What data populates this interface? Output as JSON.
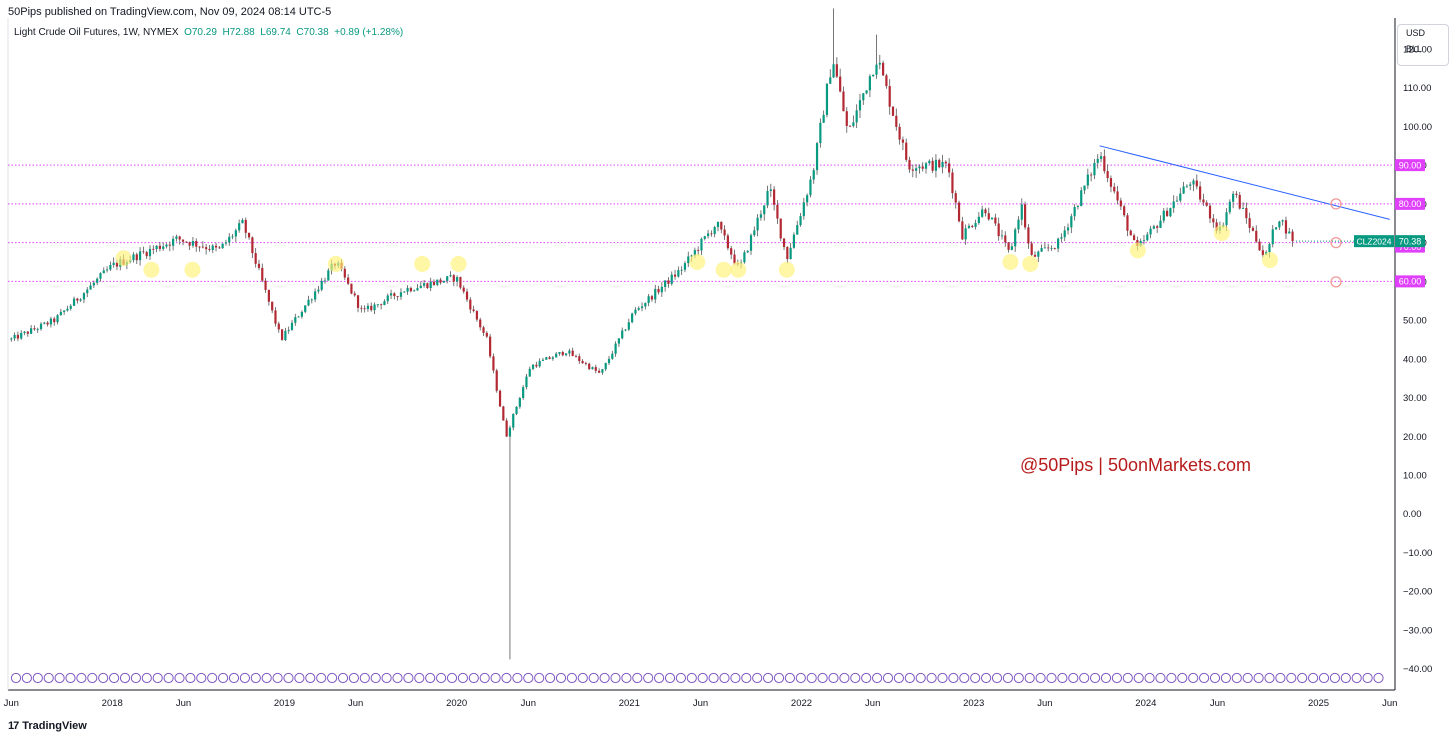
{
  "header": {
    "published": "50Pips published on TradingView.com, Nov 09, 2024 08:14 UTC-5"
  },
  "legend": {
    "title": "Light Crude Oil Futures, 1W, NYMEX",
    "open": "O70.29",
    "high": "H72.88",
    "low": "L69.74",
    "close": "C70.38",
    "change": "+0.89 (+1.28%)"
  },
  "scale": {
    "currency": "USD",
    "unit": "BLL"
  },
  "watermark": "@50Pips | 50onMarkets.com",
  "footer": {
    "brand": "TradingView"
  },
  "colors": {
    "up": "#089981",
    "down": "#b22833",
    "level": "#e040fb",
    "trend": "#2962ff",
    "highlight": "#fff176",
    "events": "#7e57c2"
  },
  "chart_data": {
    "type": "candlestick",
    "symbol": "CLZ2024",
    "interval": "1W",
    "last_price": 70.38,
    "last_price_label": "70.38",
    "ylim": [
      -45,
      128
    ],
    "y_ticks": [
      "120.00",
      "110.00",
      "100.00",
      "90.00",
      "80.00",
      "70.00",
      "60.00",
      "50.00",
      "40.00",
      "30.00",
      "20.00",
      "10.00",
      "0.00",
      "−10.00",
      "−20.00",
      "−30.00",
      "−40.00"
    ],
    "x_ticks": [
      "Jun",
      "2018",
      "Jun",
      "2019",
      "Jun",
      "2020",
      "Jun",
      "2021",
      "Jun",
      "2022",
      "Jun",
      "2023",
      "Jun",
      "2024",
      "Jun",
      "2025",
      "Jun"
    ],
    "horizontal_levels": [
      {
        "value": 90,
        "label": "90.00"
      },
      {
        "value": 80,
        "label": "80.00"
      },
      {
        "value": 70,
        "label": "70.00"
      },
      {
        "value": 60,
        "label": "60.00"
      }
    ],
    "trendline": {
      "from": {
        "date": "2023-09-25",
        "price": 95
      },
      "to": {
        "date": "2025-06-01",
        "price": 76
      }
    },
    "anchors": [
      [
        "2017-06-01",
        45
      ],
      [
        "2017-09-01",
        50
      ],
      [
        "2018-01-01",
        64
      ],
      [
        "2018-05-20",
        71
      ],
      [
        "2018-08-15",
        68
      ],
      [
        "2018-10-05",
        75
      ],
      [
        "2018-12-25",
        45
      ],
      [
        "2019-04-20",
        65
      ],
      [
        "2019-06-15",
        52
      ],
      [
        "2019-09-15",
        58
      ],
      [
        "2019-12-31",
        61
      ],
      [
        "2020-03-05",
        45
      ],
      [
        "2020-04-15",
        20
      ],
      [
        "2020-06-05",
        38
      ],
      [
        "2020-08-20",
        42
      ],
      [
        "2020-11-01",
        36
      ],
      [
        "2021-01-10",
        52
      ],
      [
        "2021-04-20",
        63
      ],
      [
        "2021-07-05",
        75
      ],
      [
        "2021-08-22",
        63
      ],
      [
        "2021-10-25",
        84
      ],
      [
        "2021-12-01",
        66
      ],
      [
        "2022-01-25",
        88
      ],
      [
        "2022-03-08",
        118
      ],
      [
        "2022-04-10",
        98
      ],
      [
        "2022-06-10",
        118
      ],
      [
        "2022-08-15",
        90
      ],
      [
        "2022-11-07",
        90
      ],
      [
        "2022-12-08",
        72
      ],
      [
        "2023-01-25",
        79
      ],
      [
        "2023-03-18",
        67
      ],
      [
        "2023-04-12",
        80
      ],
      [
        "2023-05-02",
        66
      ],
      [
        "2023-07-01",
        70
      ],
      [
        "2023-09-25",
        93
      ],
      [
        "2023-12-12",
        68
      ],
      [
        "2024-04-05",
        86
      ],
      [
        "2024-06-05",
        73
      ],
      [
        "2024-07-05",
        83
      ],
      [
        "2024-09-10",
        66
      ],
      [
        "2024-10-08",
        77
      ],
      [
        "2024-11-08",
        70.38
      ]
    ],
    "extremes": [
      {
        "date": "2020-04-20",
        "low": -37.6
      },
      {
        "date": "2022-03-07",
        "high": 130.5
      },
      {
        "date": "2022-06-06",
        "high": 123.7
      }
    ],
    "highlight_lows": [
      {
        "date": "2018-01-25",
        "price": 66
      },
      {
        "date": "2018-03-25",
        "price": 63
      },
      {
        "date": "2018-06-20",
        "price": 63
      },
      {
        "date": "2019-04-20",
        "price": 64.5
      },
      {
        "date": "2019-10-20",
        "price": 64.5
      },
      {
        "date": "2020-01-05",
        "price": 64.5
      },
      {
        "date": "2021-05-25",
        "price": 65
      },
      {
        "date": "2021-07-20",
        "price": 63
      },
      {
        "date": "2021-08-20",
        "price": 63
      },
      {
        "date": "2021-12-01",
        "price": 63
      },
      {
        "date": "2023-03-20",
        "price": 65
      },
      {
        "date": "2023-05-01",
        "price": 64.5
      },
      {
        "date": "2023-12-15",
        "price": 68
      },
      {
        "date": "2024-06-10",
        "price": 72.5
      },
      {
        "date": "2024-09-20",
        "price": 65.5
      }
    ]
  }
}
